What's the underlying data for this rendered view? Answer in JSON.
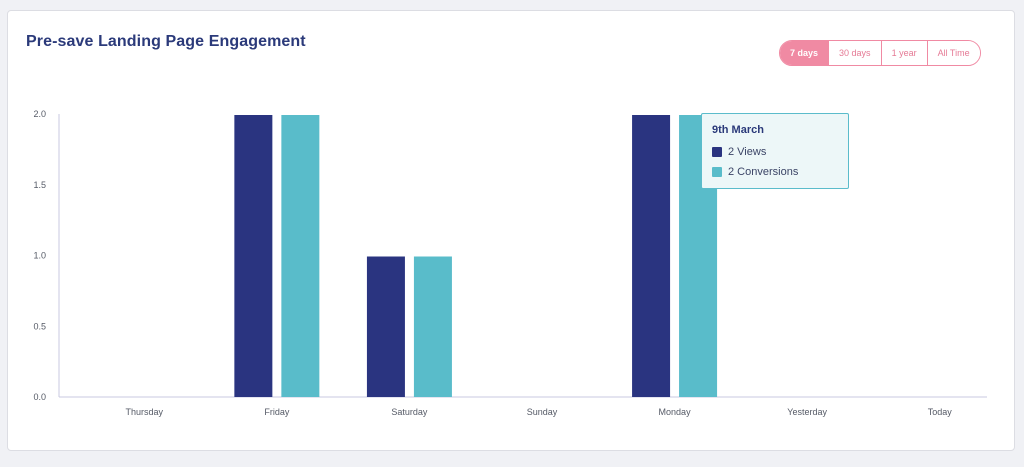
{
  "card": {
    "title": "Pre-save Landing Page Engagement"
  },
  "range_buttons": [
    {
      "label": "7 days",
      "active": true
    },
    {
      "label": "30 days",
      "active": false
    },
    {
      "label": "1 year",
      "active": false
    },
    {
      "label": "All Time",
      "active": false
    }
  ],
  "tooltip": {
    "title": "9th March",
    "rows": [
      {
        "label": "2 Views",
        "color": "#2a3480"
      },
      {
        "label": "2 Conversions",
        "color": "#59bcca"
      }
    ]
  },
  "colors": {
    "views": "#2a3480",
    "conversions": "#59bcca",
    "accent": "#f08aa3",
    "title": "#2b3a7a",
    "axis": "#c8c9e0",
    "tick_text": "#555a66"
  },
  "chart_data": {
    "type": "bar",
    "categories": [
      "Thursday",
      "Friday",
      "Saturday",
      "Sunday",
      "Monday",
      "Yesterday",
      "Today"
    ],
    "series": [
      {
        "name": "Views",
        "values": [
          0,
          2,
          1,
          0,
          2,
          0,
          0
        ]
      },
      {
        "name": "Conversions",
        "values": [
          0,
          2,
          1,
          0,
          2,
          0,
          0
        ]
      }
    ],
    "ylim": [
      0,
      2
    ],
    "yticks": [
      "0.0",
      "0.5",
      "1.0",
      "1.5",
      "2.0"
    ],
    "grid": false,
    "legend": "none"
  }
}
